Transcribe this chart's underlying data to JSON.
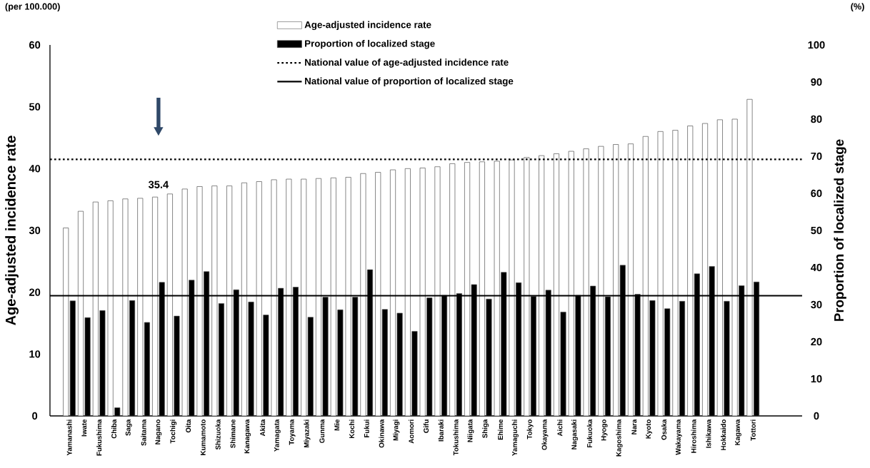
{
  "chart_data": {
    "type": "bar",
    "categories": [
      "Yamanashi",
      "Iwate",
      "Fukushima",
      "Chiba",
      "Saga",
      "Saitama",
      "Nagano",
      "Tochigi",
      "Oita",
      "Kumamoto",
      "Shizuoka",
      "Shimane",
      "Kanagawa",
      "Akita",
      "Yamagata",
      "Toyama",
      "Miyazaki",
      "Gunma",
      "Mie",
      "Kochi",
      "Fukui",
      "Okinawa",
      "Miyagi",
      "Aomori",
      "Gifu",
      "Ibaraki",
      "Tokushima",
      "Niigata",
      "Shiga",
      "Ehime",
      "Yamaguchi",
      "Tokyo",
      "Okayama",
      "Aichi",
      "Nagasaki",
      "Fukuoka",
      "Hyogo",
      "Kagoshima",
      "Nara",
      "Kyoto",
      "Osaka",
      "Wakayama",
      "Hiroshima",
      "Ishikawa",
      "Hokkaido",
      "Kagawa",
      "Tottori"
    ],
    "series": [
      {
        "name": "Age-adjusted incidence rate",
        "color": "#ffffff",
        "values": [
          30.4,
          33.1,
          34.6,
          34.8,
          35.1,
          35.2,
          35.4,
          35.9,
          36.7,
          37.1,
          37.2,
          37.2,
          37.7,
          37.9,
          38.2,
          38.3,
          38.3,
          38.4,
          38.5,
          38.6,
          39.2,
          39.4,
          39.8,
          40.0,
          40.1,
          40.3,
          40.8,
          41.0,
          41.1,
          41.2,
          41.4,
          41.8,
          42.1,
          42.4,
          42.8,
          43.2,
          43.6,
          43.9,
          44.0,
          45.2,
          46.0,
          46.2,
          46.9,
          47.3,
          47.9,
          48.0,
          51.2
        ]
      },
      {
        "name": "Proportion of localized stage",
        "color": "#000000",
        "axis": "y2",
        "values": [
          31.0,
          26.5,
          28.4,
          2.2,
          31.1,
          25.2,
          36.0,
          26.9,
          36.6,
          38.9,
          30.3,
          34.0,
          30.7,
          27.2,
          34.4,
          34.7,
          26.6,
          32.0,
          28.6,
          32.0,
          39.4,
          28.7,
          27.7,
          22.8,
          31.8,
          32.5,
          33.0,
          35.4,
          31.5,
          38.7,
          35.9,
          32.2,
          33.9,
          28.0,
          32.5,
          35.0,
          32.1,
          40.6,
          32.8,
          31.1,
          28.9,
          30.9,
          38.3,
          40.3,
          30.9,
          35.1,
          36.1
        ]
      }
    ],
    "ylabel": "Age-adjusted incidence rate",
    "y2label": "Proportion of localized stage",
    "ylim": [
      0,
      60
    ],
    "yticks": [
      0,
      10,
      20,
      30,
      40,
      50,
      60
    ],
    "y2lim": [
      0,
      100
    ],
    "y2ticks": [
      0,
      10,
      20,
      30,
      40,
      50,
      60,
      70,
      80,
      90,
      100
    ],
    "ref_lines": [
      {
        "axis": "y",
        "value": 41.5,
        "label": "National value of age-adjusted incidence rate",
        "line_style": "dotted",
        "color": "#000000"
      },
      {
        "axis": "y2",
        "value": 32.4,
        "label": "National value of proportion of localized stage",
        "line_style": "solid",
        "color": "#000000"
      }
    ],
    "annotations": [
      "(per 100.000)",
      "(%)",
      {
        "text": "35.4",
        "x": "Nagano",
        "y": 35.4
      }
    ],
    "legend": "top"
  }
}
